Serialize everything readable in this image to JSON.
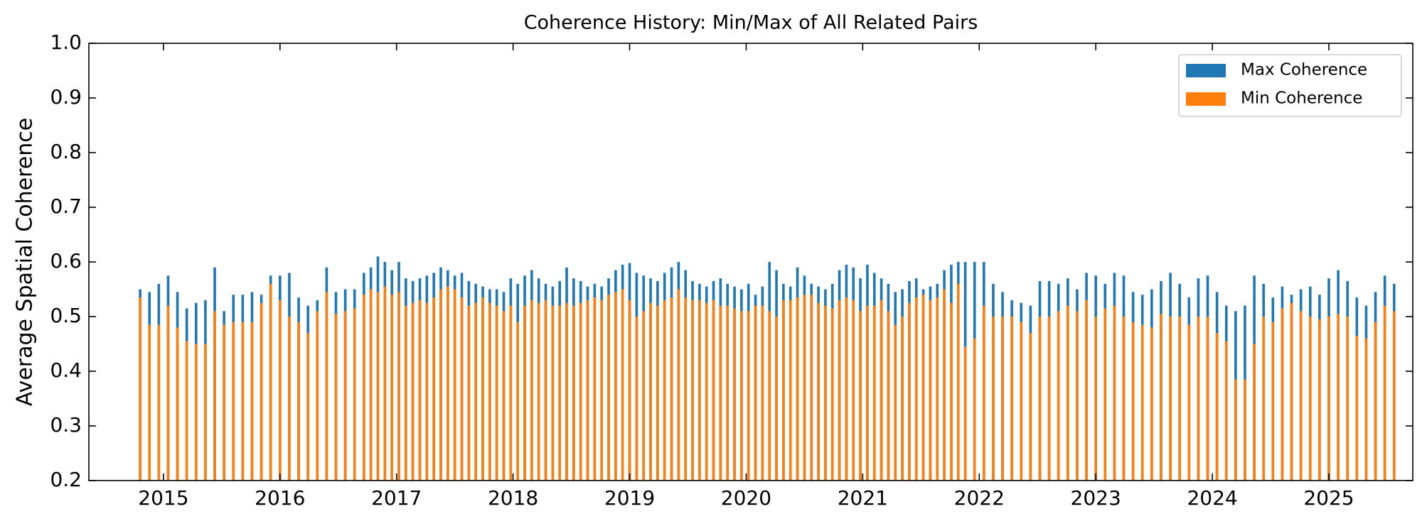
{
  "chart_data": {
    "type": "bar_overlay",
    "title": "Coherence History: Min/Max of All Related Pairs",
    "ylabel": "Average Spatial Coherence",
    "x": [
      2014.8,
      2014.88,
      2014.96,
      2015.04,
      2015.12,
      2015.2,
      2015.28,
      2015.36,
      2015.44,
      2015.52,
      2015.6,
      2015.68,
      2015.76,
      2015.84,
      2015.92,
      2016.0,
      2016.08,
      2016.16,
      2016.24,
      2016.32,
      2016.4,
      2016.48,
      2016.56,
      2016.64,
      2016.72,
      2016.78,
      2016.84,
      2016.9,
      2016.96,
      2017.02,
      2017.08,
      2017.14,
      2017.2,
      2017.26,
      2017.32,
      2017.38,
      2017.44,
      2017.5,
      2017.56,
      2017.62,
      2017.68,
      2017.74,
      2017.8,
      2017.86,
      2017.92,
      2017.98,
      2018.04,
      2018.1,
      2018.16,
      2018.22,
      2018.28,
      2018.34,
      2018.4,
      2018.46,
      2018.52,
      2018.58,
      2018.64,
      2018.7,
      2018.76,
      2018.82,
      2018.88,
      2018.94,
      2019.0,
      2019.06,
      2019.12,
      2019.18,
      2019.24,
      2019.3,
      2019.36,
      2019.42,
      2019.48,
      2019.54,
      2019.6,
      2019.66,
      2019.72,
      2019.78,
      2019.84,
      2019.9,
      2019.96,
      2020.02,
      2020.08,
      2020.14,
      2020.2,
      2020.26,
      2020.32,
      2020.38,
      2020.44,
      2020.5,
      2020.56,
      2020.62,
      2020.68,
      2020.74,
      2020.8,
      2020.86,
      2020.92,
      2020.98,
      2021.04,
      2021.1,
      2021.16,
      2021.22,
      2021.28,
      2021.34,
      2021.4,
      2021.46,
      2021.52,
      2021.58,
      2021.64,
      2021.7,
      2021.76,
      2021.82,
      2021.88,
      2021.96,
      2022.04,
      2022.12,
      2022.2,
      2022.28,
      2022.36,
      2022.44,
      2022.52,
      2022.6,
      2022.68,
      2022.76,
      2022.84,
      2022.92,
      2023.0,
      2023.08,
      2023.16,
      2023.24,
      2023.32,
      2023.4,
      2023.48,
      2023.56,
      2023.64,
      2023.72,
      2023.8,
      2023.88,
      2023.96,
      2024.04,
      2024.12,
      2024.2,
      2024.28,
      2024.36,
      2024.44,
      2024.52,
      2024.6,
      2024.68,
      2024.76,
      2024.84,
      2024.92,
      2025.0,
      2025.08,
      2025.16,
      2025.24,
      2025.32,
      2025.4,
      2025.48,
      2025.56
    ],
    "series": [
      {
        "name": "Max Coherence",
        "color": "#1f77b4",
        "values": [
          0.55,
          0.545,
          0.56,
          0.575,
          0.545,
          0.515,
          0.525,
          0.53,
          0.59,
          0.51,
          0.54,
          0.54,
          0.545,
          0.54,
          0.575,
          0.575,
          0.58,
          0.535,
          0.52,
          0.53,
          0.59,
          0.545,
          0.55,
          0.55,
          0.58,
          0.59,
          0.61,
          0.6,
          0.585,
          0.6,
          0.57,
          0.565,
          0.57,
          0.575,
          0.58,
          0.59,
          0.585,
          0.575,
          0.58,
          0.565,
          0.56,
          0.555,
          0.55,
          0.55,
          0.545,
          0.57,
          0.56,
          0.575,
          0.585,
          0.57,
          0.56,
          0.555,
          0.565,
          0.59,
          0.57,
          0.565,
          0.555,
          0.56,
          0.555,
          0.57,
          0.585,
          0.595,
          0.598,
          0.58,
          0.575,
          0.57,
          0.565,
          0.58,
          0.59,
          0.6,
          0.585,
          0.565,
          0.56,
          0.555,
          0.565,
          0.57,
          0.56,
          0.555,
          0.55,
          0.56,
          0.54,
          0.555,
          0.6,
          0.585,
          0.56,
          0.555,
          0.59,
          0.575,
          0.56,
          0.555,
          0.55,
          0.56,
          0.585,
          0.595,
          0.59,
          0.57,
          0.595,
          0.58,
          0.57,
          0.56,
          0.545,
          0.55,
          0.565,
          0.57,
          0.55,
          0.555,
          0.56,
          0.585,
          0.595,
          0.6,
          0.6,
          0.6,
          0.6,
          0.56,
          0.545,
          0.53,
          0.525,
          0.52,
          0.565,
          0.565,
          0.56,
          0.57,
          0.55,
          0.58,
          0.575,
          0.56,
          0.58,
          0.575,
          0.545,
          0.54,
          0.55,
          0.565,
          0.58,
          0.56,
          0.535,
          0.57,
          0.575,
          0.545,
          0.52,
          0.51,
          0.52,
          0.575,
          0.56,
          0.535,
          0.555,
          0.54,
          0.55,
          0.555,
          0.54,
          0.57,
          0.585,
          0.565,
          0.535,
          0.52,
          0.545,
          0.575,
          0.56
        ]
      },
      {
        "name": "Min Coherence",
        "color": "#ff7f0e",
        "values": [
          0.535,
          0.485,
          0.485,
          0.52,
          0.48,
          0.455,
          0.45,
          0.45,
          0.51,
          0.485,
          0.49,
          0.49,
          0.49,
          0.525,
          0.56,
          0.53,
          0.5,
          0.49,
          0.47,
          0.51,
          0.545,
          0.505,
          0.51,
          0.515,
          0.54,
          0.55,
          0.545,
          0.555,
          0.54,
          0.545,
          0.52,
          0.525,
          0.53,
          0.525,
          0.535,
          0.55,
          0.555,
          0.55,
          0.535,
          0.52,
          0.525,
          0.535,
          0.525,
          0.52,
          0.51,
          0.52,
          0.49,
          0.52,
          0.53,
          0.525,
          0.53,
          0.52,
          0.52,
          0.525,
          0.52,
          0.525,
          0.53,
          0.535,
          0.53,
          0.54,
          0.545,
          0.55,
          0.53,
          0.5,
          0.51,
          0.525,
          0.52,
          0.53,
          0.535,
          0.55,
          0.535,
          0.53,
          0.53,
          0.525,
          0.53,
          0.52,
          0.52,
          0.515,
          0.51,
          0.51,
          0.52,
          0.52,
          0.51,
          0.5,
          0.53,
          0.53,
          0.535,
          0.54,
          0.54,
          0.525,
          0.52,
          0.515,
          0.53,
          0.535,
          0.53,
          0.51,
          0.52,
          0.52,
          0.53,
          0.51,
          0.485,
          0.5,
          0.525,
          0.535,
          0.54,
          0.53,
          0.535,
          0.55,
          0.525,
          0.56,
          0.445,
          0.46,
          0.52,
          0.5,
          0.5,
          0.5,
          0.49,
          0.47,
          0.5,
          0.5,
          0.51,
          0.52,
          0.51,
          0.53,
          0.5,
          0.515,
          0.52,
          0.5,
          0.49,
          0.485,
          0.48,
          0.505,
          0.5,
          0.5,
          0.485,
          0.5,
          0.5,
          0.47,
          0.455,
          0.385,
          0.385,
          0.45,
          0.5,
          0.49,
          0.515,
          0.525,
          0.51,
          0.5,
          0.495,
          0.5,
          0.505,
          0.5,
          0.465,
          0.46,
          0.49,
          0.52,
          0.51
        ]
      }
    ],
    "xlim": [
      2014.36,
      2025.72
    ],
    "xticks": [
      2015,
      2016,
      2017,
      2018,
      2019,
      2020,
      2021,
      2022,
      2023,
      2024,
      2025
    ],
    "ylim": [
      0.2,
      1.0
    ],
    "yticks": [
      0.2,
      0.3,
      0.4,
      0.5,
      0.6,
      0.7,
      0.8,
      0.9,
      {
        "value": 1,
        "label": "1.0"
      }
    ],
    "legend": "upper right"
  }
}
